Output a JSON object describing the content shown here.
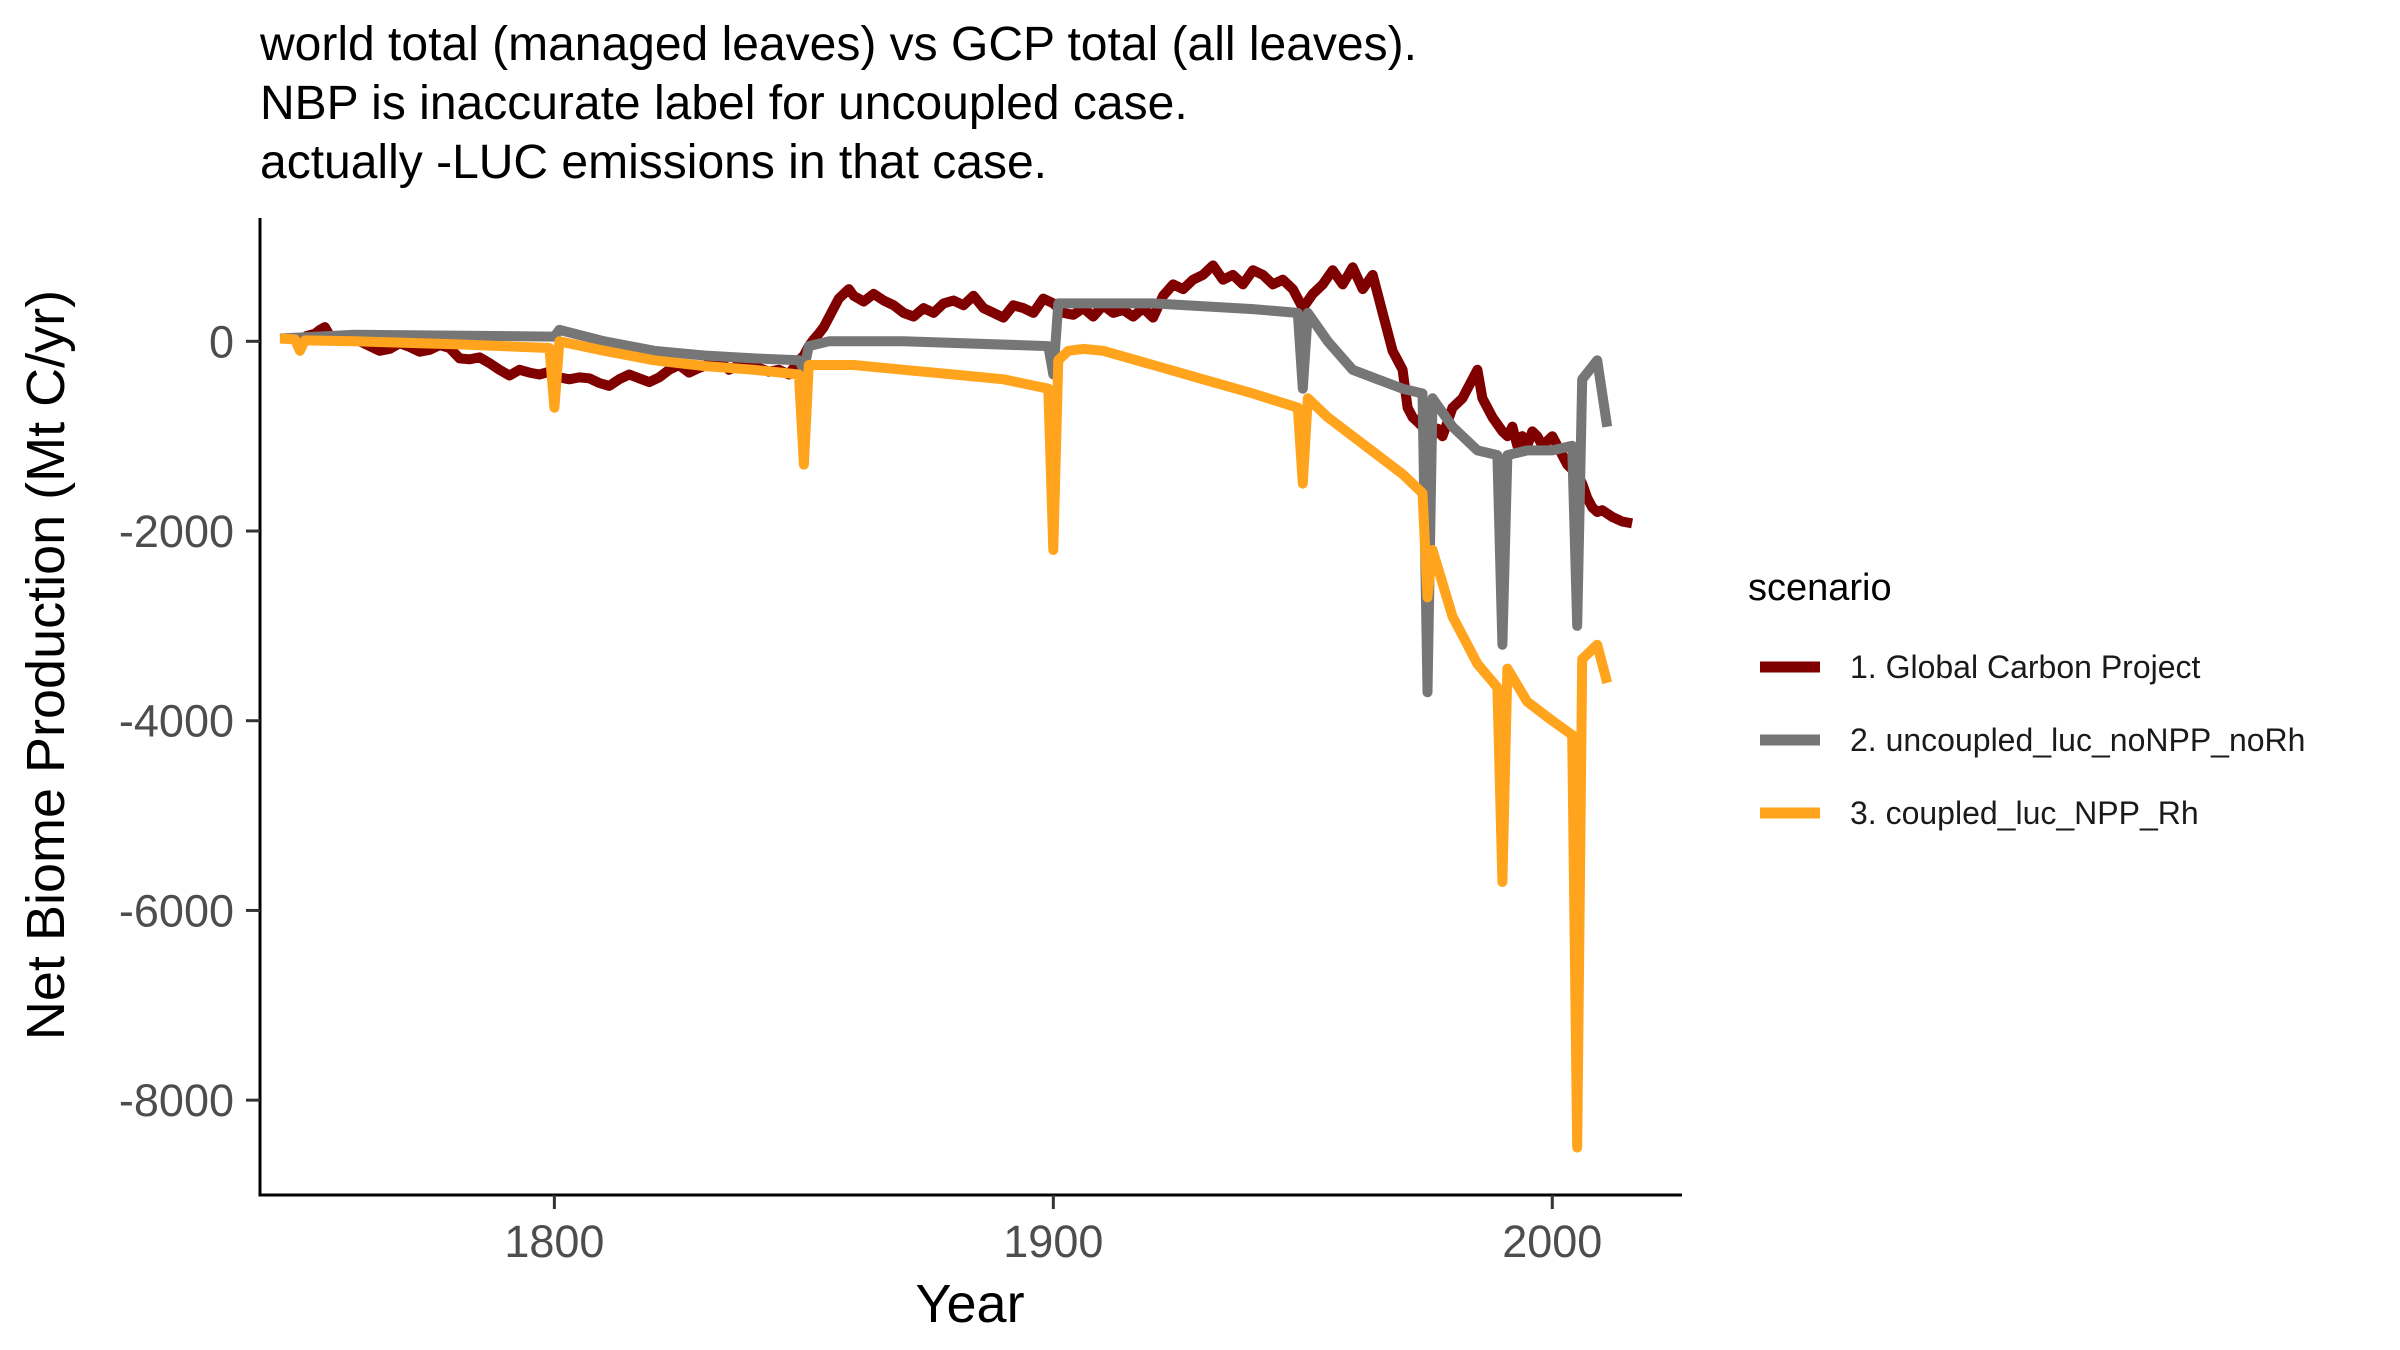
{
  "chart_data": {
    "type": "line",
    "title": [
      "world total (managed leaves) vs GCP total (all leaves).",
      "NBP is inaccurate label for uncoupled case.",
      "actually -LUC emissions in that case."
    ],
    "xlabel": "Year",
    "ylabel": "Net Biome Production (Mt C/yr)",
    "xlim": [
      1741,
      2026
    ],
    "ylim": [
      -9000,
      1300
    ],
    "x_ticks": [
      1800,
      1900,
      2000
    ],
    "y_ticks": [
      0,
      -2000,
      -4000,
      -6000,
      -8000
    ],
    "grid": false,
    "legend": {
      "title": "scenario",
      "placement": "right"
    },
    "series": [
      {
        "name": "1. Global Carbon Project",
        "color": "#800000",
        "points": [
          [
            1750,
            50
          ],
          [
            1752,
            80
          ],
          [
            1753,
            120
          ],
          [
            1754,
            150
          ],
          [
            1755,
            60
          ],
          [
            1757,
            20
          ],
          [
            1759,
            50
          ],
          [
            1761,
            0
          ],
          [
            1763,
            -50
          ],
          [
            1765,
            -100
          ],
          [
            1767,
            -80
          ],
          [
            1769,
            -20
          ],
          [
            1771,
            -60
          ],
          [
            1773,
            -110
          ],
          [
            1775,
            -90
          ],
          [
            1777,
            -40
          ],
          [
            1779,
            -70
          ],
          [
            1781,
            -180
          ],
          [
            1783,
            -190
          ],
          [
            1785,
            -170
          ],
          [
            1787,
            -230
          ],
          [
            1789,
            -300
          ],
          [
            1791,
            -360
          ],
          [
            1793,
            -300
          ],
          [
            1795,
            -330
          ],
          [
            1797,
            -350
          ],
          [
            1799,
            -320
          ],
          [
            1801,
            -380
          ],
          [
            1803,
            -400
          ],
          [
            1805,
            -380
          ],
          [
            1807,
            -390
          ],
          [
            1809,
            -440
          ],
          [
            1811,
            -470
          ],
          [
            1813,
            -400
          ],
          [
            1815,
            -350
          ],
          [
            1817,
            -390
          ],
          [
            1819,
            -430
          ],
          [
            1821,
            -380
          ],
          [
            1823,
            -300
          ],
          [
            1825,
            -250
          ],
          [
            1827,
            -330
          ],
          [
            1829,
            -280
          ],
          [
            1831,
            -240
          ],
          [
            1833,
            -200
          ],
          [
            1835,
            -300
          ],
          [
            1837,
            -250
          ],
          [
            1839,
            -230
          ],
          [
            1841,
            -280
          ],
          [
            1843,
            -320
          ],
          [
            1845,
            -300
          ],
          [
            1847,
            -350
          ],
          [
            1849,
            -200
          ],
          [
            1850,
            -150
          ],
          [
            1851,
            -50
          ],
          [
            1852,
            20
          ],
          [
            1853,
            80
          ],
          [
            1854,
            150
          ],
          [
            1855,
            250
          ],
          [
            1856,
            350
          ],
          [
            1857,
            450
          ],
          [
            1858,
            500
          ],
          [
            1859,
            550
          ],
          [
            1860,
            480
          ],
          [
            1862,
            420
          ],
          [
            1864,
            500
          ],
          [
            1866,
            430
          ],
          [
            1868,
            380
          ],
          [
            1870,
            300
          ],
          [
            1872,
            260
          ],
          [
            1874,
            350
          ],
          [
            1876,
            300
          ],
          [
            1878,
            400
          ],
          [
            1880,
            430
          ],
          [
            1882,
            380
          ],
          [
            1884,
            480
          ],
          [
            1886,
            350
          ],
          [
            1888,
            300
          ],
          [
            1890,
            250
          ],
          [
            1892,
            380
          ],
          [
            1894,
            350
          ],
          [
            1896,
            300
          ],
          [
            1898,
            450
          ],
          [
            1900,
            400
          ],
          [
            1902,
            300
          ],
          [
            1904,
            280
          ],
          [
            1906,
            350
          ],
          [
            1908,
            260
          ],
          [
            1910,
            380
          ],
          [
            1912,
            300
          ],
          [
            1914,
            330
          ],
          [
            1916,
            260
          ],
          [
            1918,
            350
          ],
          [
            1920,
            250
          ],
          [
            1922,
            480
          ],
          [
            1924,
            600
          ],
          [
            1926,
            550
          ],
          [
            1928,
            650
          ],
          [
            1930,
            700
          ],
          [
            1932,
            800
          ],
          [
            1934,
            650
          ],
          [
            1936,
            700
          ],
          [
            1938,
            600
          ],
          [
            1940,
            750
          ],
          [
            1942,
            700
          ],
          [
            1944,
            600
          ],
          [
            1946,
            650
          ],
          [
            1948,
            550
          ],
          [
            1950,
            350
          ],
          [
            1952,
            500
          ],
          [
            1954,
            600
          ],
          [
            1956,
            750
          ],
          [
            1958,
            600
          ],
          [
            1960,
            780
          ],
          [
            1962,
            550
          ],
          [
            1964,
            700
          ],
          [
            1966,
            300
          ],
          [
            1968,
            -100
          ],
          [
            1970,
            -300
          ],
          [
            1971,
            -700
          ],
          [
            1972,
            -800
          ],
          [
            1973,
            -850
          ],
          [
            1974,
            -900
          ],
          [
            1975,
            -950
          ],
          [
            1976,
            -1000
          ],
          [
            1977,
            -920
          ],
          [
            1978,
            -1000
          ],
          [
            1980,
            -700
          ],
          [
            1982,
            -600
          ],
          [
            1984,
            -400
          ],
          [
            1985,
            -300
          ],
          [
            1986,
            -600
          ],
          [
            1988,
            -800
          ],
          [
            1990,
            -950
          ],
          [
            1991,
            -1000
          ],
          [
            1992,
            -900
          ],
          [
            1993,
            -1100
          ],
          [
            1994,
            -1000
          ],
          [
            1995,
            -1100
          ],
          [
            1996,
            -950
          ],
          [
            1997,
            -1000
          ],
          [
            1998,
            -1100
          ],
          [
            2000,
            -1000
          ],
          [
            2002,
            -1200
          ],
          [
            2003,
            -1300
          ],
          [
            2004,
            -1350
          ],
          [
            2005,
            -1400
          ],
          [
            2006,
            -1500
          ],
          [
            2007,
            -1650
          ],
          [
            2008,
            -1750
          ],
          [
            2009,
            -1800
          ],
          [
            2010,
            -1780
          ],
          [
            2012,
            -1850
          ],
          [
            2014,
            -1900
          ],
          [
            2016,
            -1920
          ]
        ]
      },
      {
        "name": "2. uncoupled_luc_noNPP_noRh",
        "color": "#767676",
        "points": [
          [
            1745,
            30
          ],
          [
            1760,
            70
          ],
          [
            1800,
            50
          ],
          [
            1801,
            120
          ],
          [
            1810,
            0
          ],
          [
            1820,
            -100
          ],
          [
            1830,
            -150
          ],
          [
            1840,
            -180
          ],
          [
            1849,
            -200
          ],
          [
            1850,
            -300
          ],
          [
            1851,
            -50
          ],
          [
            1855,
            0
          ],
          [
            1870,
            0
          ],
          [
            1899,
            -50
          ],
          [
            1900,
            -350
          ],
          [
            1901,
            400
          ],
          [
            1910,
            400
          ],
          [
            1920,
            400
          ],
          [
            1930,
            370
          ],
          [
            1940,
            340
          ],
          [
            1949,
            300
          ],
          [
            1950,
            -500
          ],
          [
            1951,
            300
          ],
          [
            1955,
            0
          ],
          [
            1960,
            -300
          ],
          [
            1965,
            -400
          ],
          [
            1970,
            -500
          ],
          [
            1974,
            -550
          ],
          [
            1975,
            -3700
          ],
          [
            1976,
            -600
          ],
          [
            1980,
            -900
          ],
          [
            1985,
            -1150
          ],
          [
            1989,
            -1200
          ],
          [
            1990,
            -3200
          ],
          [
            1991,
            -1200
          ],
          [
            1995,
            -1150
          ],
          [
            2000,
            -1150
          ],
          [
            2004,
            -1100
          ],
          [
            2005,
            -3000
          ],
          [
            2006,
            -400
          ],
          [
            2009,
            -200
          ],
          [
            2011,
            -900
          ]
        ]
      },
      {
        "name": "3. coupled_luc_NPP_Rh",
        "color": "#ffa41c",
        "points": [
          [
            1745,
            30
          ],
          [
            1748,
            20
          ],
          [
            1749,
            -100
          ],
          [
            1750,
            10
          ],
          [
            1760,
            0
          ],
          [
            1780,
            -30
          ],
          [
            1799,
            -70
          ],
          [
            1800,
            -700
          ],
          [
            1801,
            0
          ],
          [
            1810,
            -100
          ],
          [
            1820,
            -200
          ],
          [
            1830,
            -260
          ],
          [
            1840,
            -300
          ],
          [
            1849,
            -350
          ],
          [
            1850,
            -1300
          ],
          [
            1851,
            -250
          ],
          [
            1860,
            -250
          ],
          [
            1870,
            -300
          ],
          [
            1880,
            -350
          ],
          [
            1890,
            -400
          ],
          [
            1899,
            -500
          ],
          [
            1900,
            -2200
          ],
          [
            1901,
            -200
          ],
          [
            1903,
            -100
          ],
          [
            1906,
            -80
          ],
          [
            1910,
            -100
          ],
          [
            1920,
            -250
          ],
          [
            1930,
            -400
          ],
          [
            1940,
            -550
          ],
          [
            1949,
            -700
          ],
          [
            1950,
            -1500
          ],
          [
            1951,
            -600
          ],
          [
            1955,
            -800
          ],
          [
            1960,
            -1000
          ],
          [
            1965,
            -1200
          ],
          [
            1970,
            -1400
          ],
          [
            1974,
            -1600
          ],
          [
            1975,
            -2700
          ],
          [
            1976,
            -2200
          ],
          [
            1980,
            -2900
          ],
          [
            1985,
            -3400
          ],
          [
            1989,
            -3650
          ],
          [
            1990,
            -5700
          ],
          [
            1991,
            -3450
          ],
          [
            1995,
            -3800
          ],
          [
            2000,
            -4000
          ],
          [
            2004,
            -4150
          ],
          [
            2005,
            -8500
          ],
          [
            2006,
            -3350
          ],
          [
            2009,
            -3200
          ],
          [
            2011,
            -3600
          ]
        ]
      }
    ]
  }
}
